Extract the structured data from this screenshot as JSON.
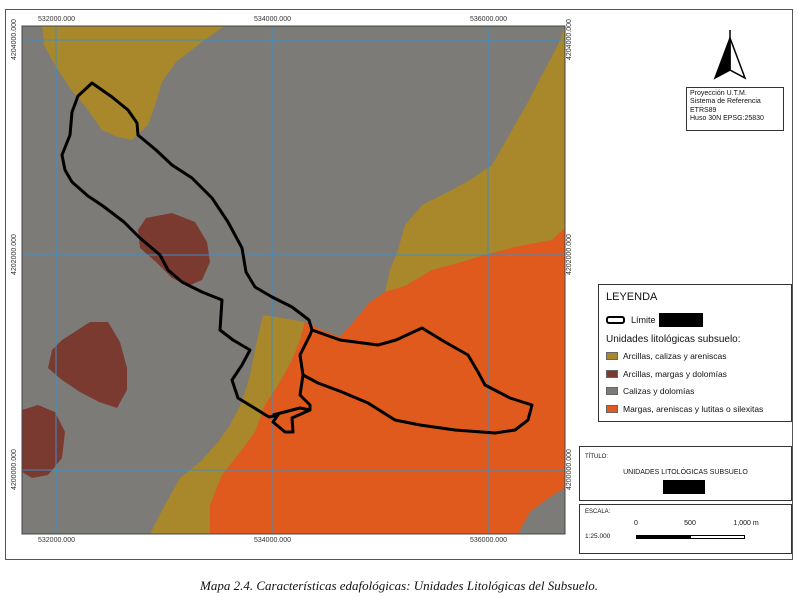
{
  "map": {
    "top_coords": [
      "532000.000",
      "534000.000",
      "536000.000"
    ],
    "bottom_coords": [
      "532000.000",
      "534000.000",
      "536000.000"
    ],
    "left_coords": [
      "4204000.000",
      "4202000.000",
      "4200000.000"
    ],
    "right_coords": [
      "4204000.000",
      "4202000.000",
      "4200000.000"
    ],
    "colors": {
      "arcillas_calizas": "#A8882A",
      "arcillas_margas": "#7A3A30",
      "calizas": "#7D7B78",
      "margas": "#E05A1E",
      "grid": "#3A8FC8",
      "limit": "#000000"
    },
    "north_arrow_icon": "north-arrow-icon"
  },
  "projection": {
    "lines": [
      "Proyección U.T.M.",
      "Sistema de Referencia",
      "ETRS89",
      "Huso 30N  EPSG:25830"
    ]
  },
  "legend": {
    "title": "LEYENDA",
    "limit_label": "Límite",
    "subtitle": "Unidades litológicas subsuelo:",
    "items": [
      {
        "label": "Arcillas, calizas y areniscas",
        "color": "#A8882A"
      },
      {
        "label": "Arcillas, margas y dolomías",
        "color": "#7A3A30"
      },
      {
        "label": "Calizas y dolomías",
        "color": "#7D7B78"
      },
      {
        "label": "Margas, areniscas y lutitas o silexitas",
        "color": "#E05A1E"
      }
    ]
  },
  "title_box": {
    "label": "TÍTULO:",
    "text": "UNIDADES LITOLÓGICAS SUBSUELO"
  },
  "scale": {
    "label": "ESCALA:",
    "ticks": [
      "0",
      "500",
      "1,000 m"
    ],
    "ratio": "1:25.000"
  },
  "caption": "Mapa 2.4. Características edafológicas: Unidades Litológicas del Subsuelo."
}
